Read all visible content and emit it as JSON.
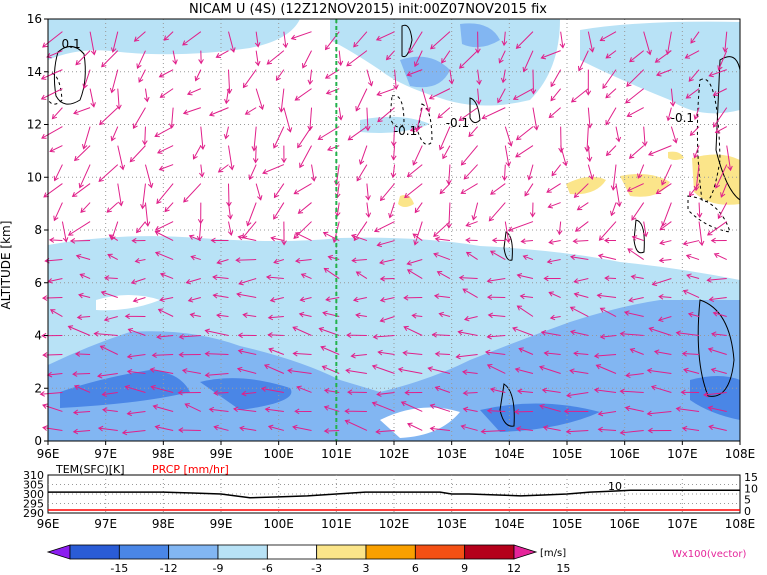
{
  "chart_data": [
    {
      "type": "heatmap",
      "title": "NICAM U (4S) (12Z12NOV2015) init:00Z07NOV2015 fix",
      "ylabel": "ALTITUDE [km]",
      "x_ticks": [
        "96E",
        "97E",
        "98E",
        "99E",
        "100E",
        "101E",
        "102E",
        "103E",
        "104E",
        "105E",
        "106E",
        "107E",
        "108E"
      ],
      "x_values": [
        96,
        97,
        98,
        99,
        100,
        101,
        102,
        103,
        104,
        105,
        106,
        107,
        108
      ],
      "xlim": [
        96,
        108
      ],
      "y_ticks": [
        "0",
        "2",
        "4",
        "6",
        "8",
        "10",
        "12",
        "14",
        "16"
      ],
      "y_values": [
        0,
        2,
        4,
        6,
        8,
        10,
        12,
        14,
        16
      ],
      "ylim": [
        0,
        16
      ],
      "grid": true,
      "marker_line_x": 101,
      "contour_labels": [
        {
          "text": "0.1",
          "x": 96.4,
          "y": 14.9
        },
        {
          "text": "-0.1",
          "x": 102.2,
          "y": 11.6
        },
        {
          "text": "-0.1",
          "x": 103.1,
          "y": 11.9
        },
        {
          "text": "-0.1",
          "x": 107.0,
          "y": 12.1
        }
      ],
      "vector_label": "Wx100(vector)",
      "colors": {
        "vector": "#e0208a",
        "marker_line": "#22b24c",
        "grid": "#999999"
      }
    },
    {
      "type": "line",
      "series_labels": [
        "TEM(SFC)[K]",
        "PRCP [mm/hr]"
      ],
      "series": [
        {
          "values": [
            301,
            301,
            301,
            301,
            301,
            300.5,
            300,
            298,
            298.5,
            299,
            300,
            301,
            301,
            301,
            301,
            301,
            300,
            300,
            299.5,
            299,
            299.5,
            300,
            301,
            301.5,
            302,
            302,
            302,
            302
          ],
          "x": [
            96,
            96.5,
            97,
            97.5,
            98,
            98.5,
            99,
            99.5,
            100,
            100.5,
            101,
            101.5,
            102,
            102.2,
            102.5,
            102.8,
            103,
            103.3,
            103.8,
            104.2,
            104.6,
            105,
            105.4,
            105.8,
            106.1,
            106.5,
            107.5,
            108
          ]
        },
        {
          "values": [
            0,
            0,
            0,
            0
          ],
          "x": [
            96,
            102.5,
            102.8,
            108
          ]
        }
      ],
      "left_ticks": [
        "290",
        "295",
        "300",
        "305",
        "310"
      ],
      "left_values": [
        290,
        295,
        300,
        305,
        310
      ],
      "right_ticks": [
        "0",
        "5",
        "10",
        "15"
      ],
      "right_values": [
        0,
        5,
        10,
        15
      ],
      "x_ticks": [
        "96E",
        "97E",
        "98E",
        "99E",
        "100E",
        "101E",
        "102E",
        "103E",
        "104E",
        "105E",
        "106E",
        "107E",
        "108E"
      ],
      "annotation": "10",
      "colors": {
        "tem": "#000000",
        "prcp": "#ff0000"
      }
    }
  ],
  "colorbar": {
    "ticks": [
      "-15",
      "-12",
      "-9",
      "-6",
      "-3",
      "3",
      "6",
      "9",
      "12",
      "15"
    ],
    "unit": "[m/s]",
    "colors": [
      "#8c1ef0",
      "#2a5cd6",
      "#4a86e6",
      "#82b6f2",
      "#b8e2f6",
      "#ffffff",
      "#fbe58a",
      "#f9a000",
      "#f35014",
      "#b4001a",
      "#e5249a"
    ]
  }
}
